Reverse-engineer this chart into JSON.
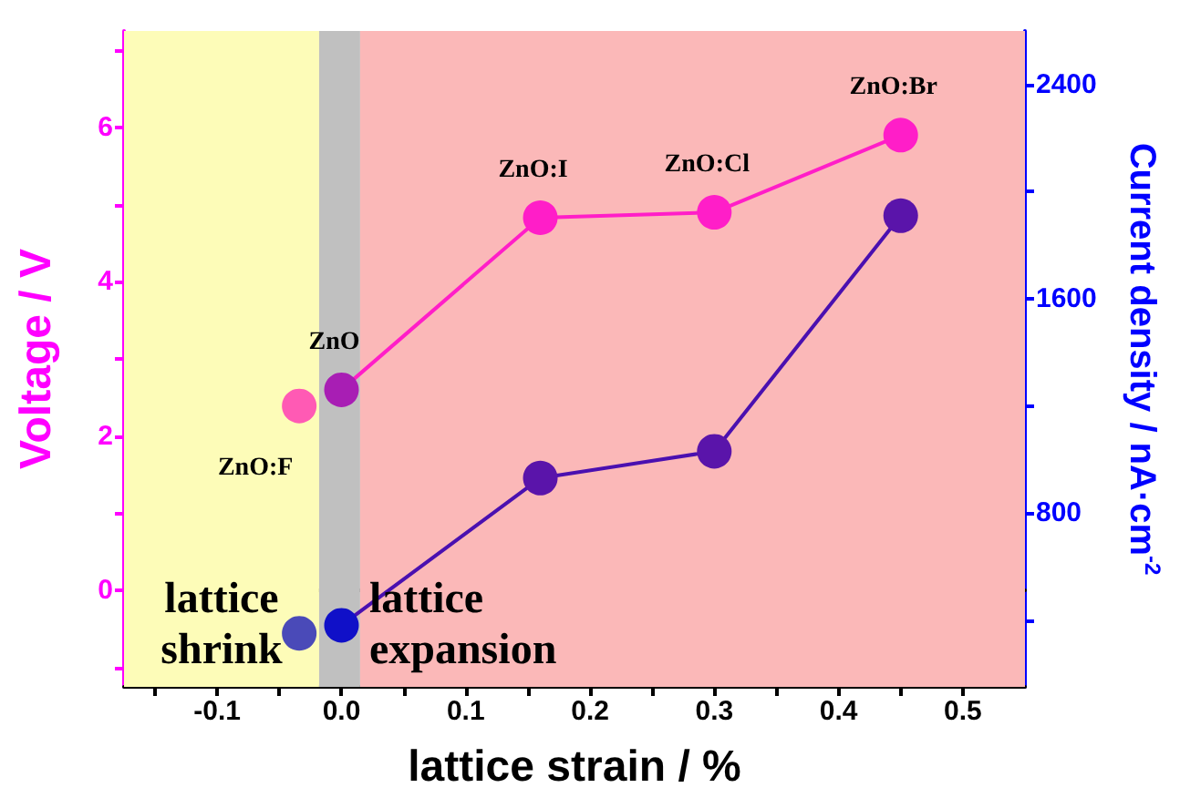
{
  "chart_data": {
    "type": "line",
    "xlabel": "lattice strain / %",
    "ylabel": "Voltage / V",
    "y2label": "Current density / nA·cm$^{-2}$",
    "xlim": [
      -0.175,
      0.55
    ],
    "xticks": [
      {
        "value": -0.15,
        "label": null
      },
      -0.1,
      {
        "value": -0.05,
        "label": null
      },
      {
        "value": 0,
        "label": "0.0"
      },
      {
        "value": 0.05,
        "label": null
      },
      0.1,
      {
        "value": 0.15,
        "label": null
      },
      0.2,
      {
        "value": 0.25,
        "label": null
      },
      0.3,
      {
        "value": 0.35,
        "label": null
      },
      0.4,
      {
        "value": 0.45,
        "label": null
      },
      0.5
    ],
    "ylim": [
      -1.25,
      7.25
    ],
    "yticks": [
      {
        "value": -1,
        "label": null
      },
      0,
      {
        "value": 1,
        "label": null
      },
      2,
      {
        "value": 3,
        "label": null
      },
      4,
      {
        "value": 5,
        "label": null
      },
      6,
      {
        "value": 7,
        "label": null
      }
    ],
    "y2lim": [
      150,
      2600
    ],
    "y2ticks": [
      {
        "value": 400,
        "label": null
      },
      800,
      {
        "value": 1200,
        "label": null
      },
      1600,
      {
        "value": 2000,
        "label": null
      },
      2400
    ],
    "marker": "circle",
    "series": [
      {
        "color": "#ff1ec8",
        "x": [
          0,
          0.16,
          0.3,
          0.45
        ],
        "values": [
          2.6,
          4.83,
          4.9,
          5.9
        ],
        "colors": [
          "#a81eb4",
          "#ff1ec8",
          "#ff1ec8",
          "#ff1ec8"
        ]
      },
      {
        "type": "scatter",
        "color": "#ff5ab4",
        "x": [
          -0.034
        ],
        "values": [
          2.39
        ]
      },
      {
        "type": "line",
        "axis": "y2",
        "color": "#4a10b0",
        "x": [
          0,
          0.16,
          0.3,
          0.45
        ],
        "values": [
          380,
          930,
          1030,
          1910
        ],
        "colors": [
          "#1010c8",
          "#5a14aa",
          "#5a14aa",
          "#5a14aa"
        ]
      },
      {
        "type": "scatter",
        "axis": "y2",
        "color": "#4a4ab8",
        "x": [
          -0.034
        ],
        "values": [
          350
        ]
      }
    ],
    "bands": [
      {
        "axis": "x",
        "from": -0.175,
        "to": -0.018,
        "color": "#fdfcb8",
        "label": "lattice\nshrink"
      },
      {
        "axis": "x",
        "from": -0.018,
        "to": 0.015,
        "color": "#c0c0c0"
      },
      {
        "axis": "x",
        "from": 0.015,
        "to": 0.55,
        "color": "#fbb8b8",
        "label": "lattice\nexpansion"
      }
    ],
    "annotations": [
      {
        "text": "ZnO:F",
        "x": -0.034,
        "y": 2.39
      },
      {
        "text": "ZnO",
        "x": 0,
        "y": 2.6
      },
      {
        "text": "ZnO:I",
        "x": 0.16,
        "y": 4.83
      },
      {
        "text": "ZnO:Cl",
        "x": 0.3,
        "y": 4.9
      },
      {
        "text": "ZnO:Br",
        "x": 0.45,
        "y": 5.9
      }
    ]
  }
}
